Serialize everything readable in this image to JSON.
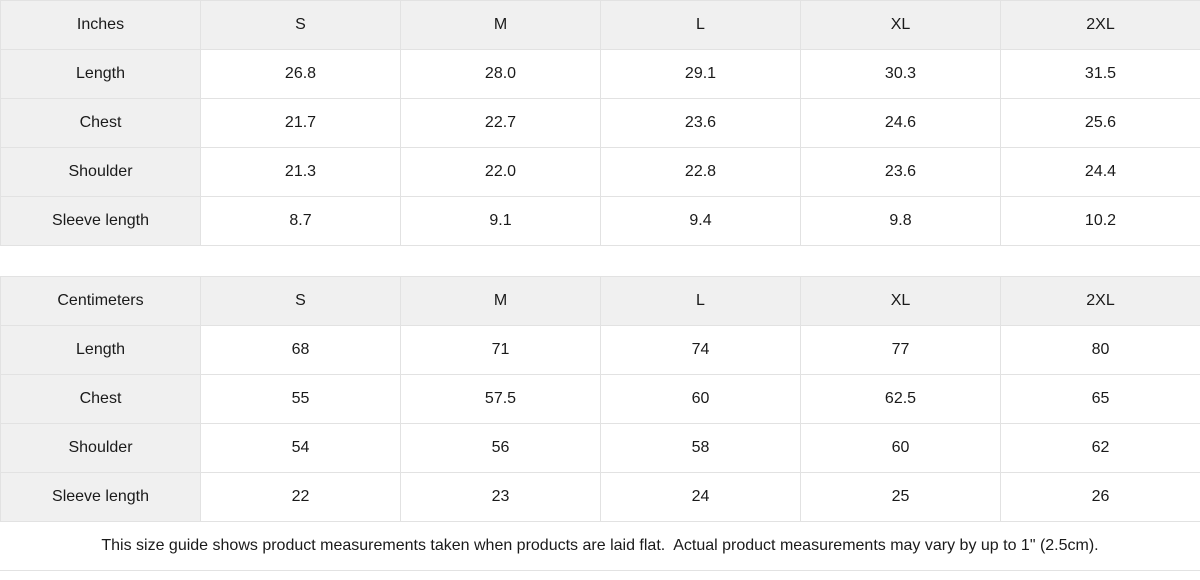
{
  "colors": {
    "header_bg": "#f0f0f0",
    "border": "#e2e2e2",
    "cell_bg": "#ffffff",
    "text": "#1a1a1a"
  },
  "chart_data": [
    {
      "type": "table",
      "title": "Inches",
      "columns": [
        "Inches",
        "S",
        "M",
        "L",
        "XL",
        "2XL"
      ],
      "rows": [
        {
          "label": "Length",
          "values": [
            "26.8",
            "28.0",
            "29.1",
            "30.3",
            "31.5"
          ]
        },
        {
          "label": "Chest",
          "values": [
            "21.7",
            "22.7",
            "23.6",
            "24.6",
            "25.6"
          ]
        },
        {
          "label": "Shoulder",
          "values": [
            "21.3",
            "22.0",
            "22.8",
            "23.6",
            "24.4"
          ]
        },
        {
          "label": "Sleeve length",
          "values": [
            "8.7",
            "9.1",
            "9.4",
            "9.8",
            "10.2"
          ]
        }
      ]
    },
    {
      "type": "table",
      "title": "Centimeters",
      "columns": [
        "Centimeters",
        "S",
        "M",
        "L",
        "XL",
        "2XL"
      ],
      "rows": [
        {
          "label": "Length",
          "values": [
            "68",
            "71",
            "74",
            "77",
            "80"
          ]
        },
        {
          "label": "Chest",
          "values": [
            "55",
            "57.5",
            "60",
            "62.5",
            "65"
          ]
        },
        {
          "label": "Shoulder",
          "values": [
            "54",
            "56",
            "58",
            "60",
            "62"
          ]
        },
        {
          "label": "Sleeve length",
          "values": [
            "22",
            "23",
            "24",
            "25",
            "26"
          ]
        }
      ]
    }
  ],
  "footer": {
    "note": "This size guide shows product measurements taken when products are laid flat.  Actual product measurements may vary by up to 1\" (2.5cm)."
  }
}
